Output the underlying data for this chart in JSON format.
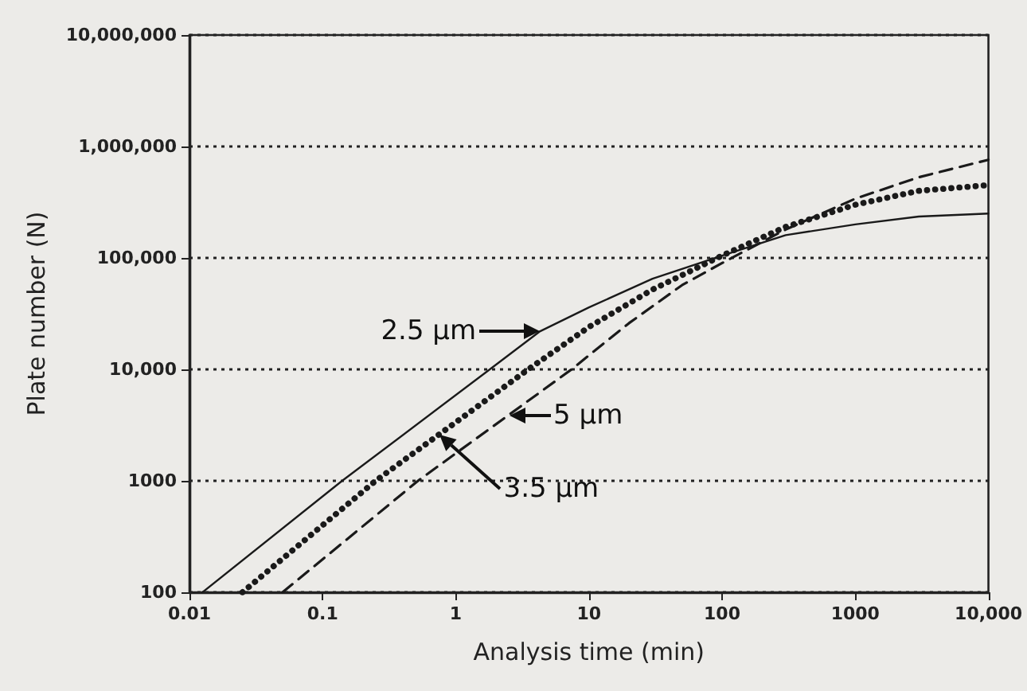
{
  "chart_data": {
    "type": "line",
    "xlabel": "Analysis time (min)",
    "ylabel": "Plate number (N)",
    "log": "xy",
    "grid": "y",
    "marker": "none",
    "xlim": [
      0.01,
      10000
    ],
    "xticks": [
      0.01,
      0.1,
      1,
      10,
      100,
      1000,
      {
        "value": 10000,
        "label": "10,000"
      }
    ],
    "ylim": [
      100,
      10000000
    ],
    "yticks": [
      100,
      1000,
      {
        "value": 10000,
        "label": "10,000"
      },
      {
        "value": 100000,
        "label": "100,000"
      },
      {
        "value": 1000000,
        "label": "1,000,000"
      },
      {
        "value": 10000000,
        "label": "10,000,000"
      }
    ],
    "series": [
      {
        "color": "#1a1a1a",
        "line_style": "solid",
        "x": [
          0.0125,
          0.14,
          1.8,
          4.3,
          10,
          30,
          100,
          300,
          1000,
          3000,
          10000
        ],
        "values": [
          100,
          1000,
          10000,
          22000,
          36000,
          65000,
          105000,
          160000,
          200000,
          235000,
          250000
        ]
      },
      {
        "color": "#1a1a1a",
        "line_style": "dotted",
        "x": [
          0.025,
          0.25,
          3.5,
          10,
          30,
          100,
          300,
          1000,
          3000,
          10000
        ],
        "values": [
          100,
          1000,
          10000,
          24000,
          52000,
          105000,
          190000,
          300000,
          400000,
          450000
        ]
      },
      {
        "color": "#1a1a1a",
        "line_style": "dashed",
        "x": [
          0.05,
          0.52,
          7.4,
          20,
          50,
          100,
          300,
          1000,
          3000,
          10000
        ],
        "values": [
          100,
          1000,
          10000,
          26000,
          57000,
          90000,
          180000,
          340000,
          530000,
          760000
        ]
      }
    ],
    "annotations": [
      {
        "text": "2.5 µm",
        "x": 4.3,
        "y": 22000
      },
      {
        "text": "5 µm",
        "x": 2.5,
        "y": 3900
      },
      {
        "text": "3.5 µm",
        "x": 0.76,
        "y": 2600
      }
    ]
  }
}
